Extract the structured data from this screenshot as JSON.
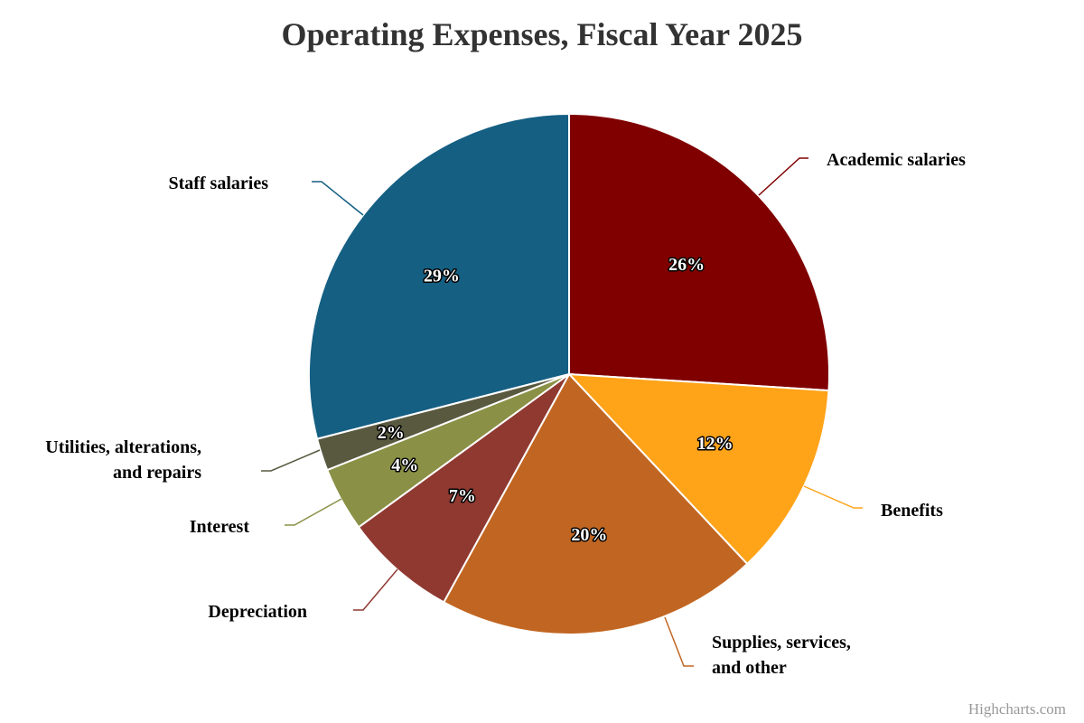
{
  "chart_data": {
    "type": "pie",
    "title": "Operating Expenses, Fiscal Year 2025",
    "slices": [
      {
        "name": "Academic salaries",
        "label_lines": [
          "Academic salaries"
        ],
        "value": 26,
        "pct_label": "26%",
        "color": "#800000",
        "pct_label_color": "#ffffff"
      },
      {
        "name": "Benefits",
        "label_lines": [
          "Benefits"
        ],
        "value": 12,
        "pct_label": "12%",
        "color": "#FFA319",
        "pct_label_color": "#ffffff"
      },
      {
        "name": "Supplies, services, and other",
        "label_lines": [
          "Supplies, services,",
          "and other"
        ],
        "value": 20,
        "pct_label": "20%",
        "color": "#C16622",
        "pct_label_color": "#ffffff"
      },
      {
        "name": "Depreciation",
        "label_lines": [
          "Depreciation"
        ],
        "value": 7,
        "pct_label": "7%",
        "color": "#8F3931",
        "pct_label_color": "#ffffff"
      },
      {
        "name": "Interest",
        "label_lines": [
          "Interest"
        ],
        "value": 4,
        "pct_label": "4%",
        "color": "#8A9045",
        "pct_label_color": "#ffffff"
      },
      {
        "name": "Utilities, alterations, and repairs",
        "label_lines": [
          "Utilities, alterations,",
          "and repairs"
        ],
        "value": 2,
        "pct_label": "2%",
        "color": "#58593F",
        "pct_label_color": "#ffffff"
      },
      {
        "name": "Staff salaries",
        "label_lines": [
          "Staff salaries"
        ],
        "value": 29,
        "pct_label": "29%",
        "color": "#155F83",
        "pct_label_color": "#ffffff"
      }
    ]
  },
  "credit": "Highcharts.com"
}
